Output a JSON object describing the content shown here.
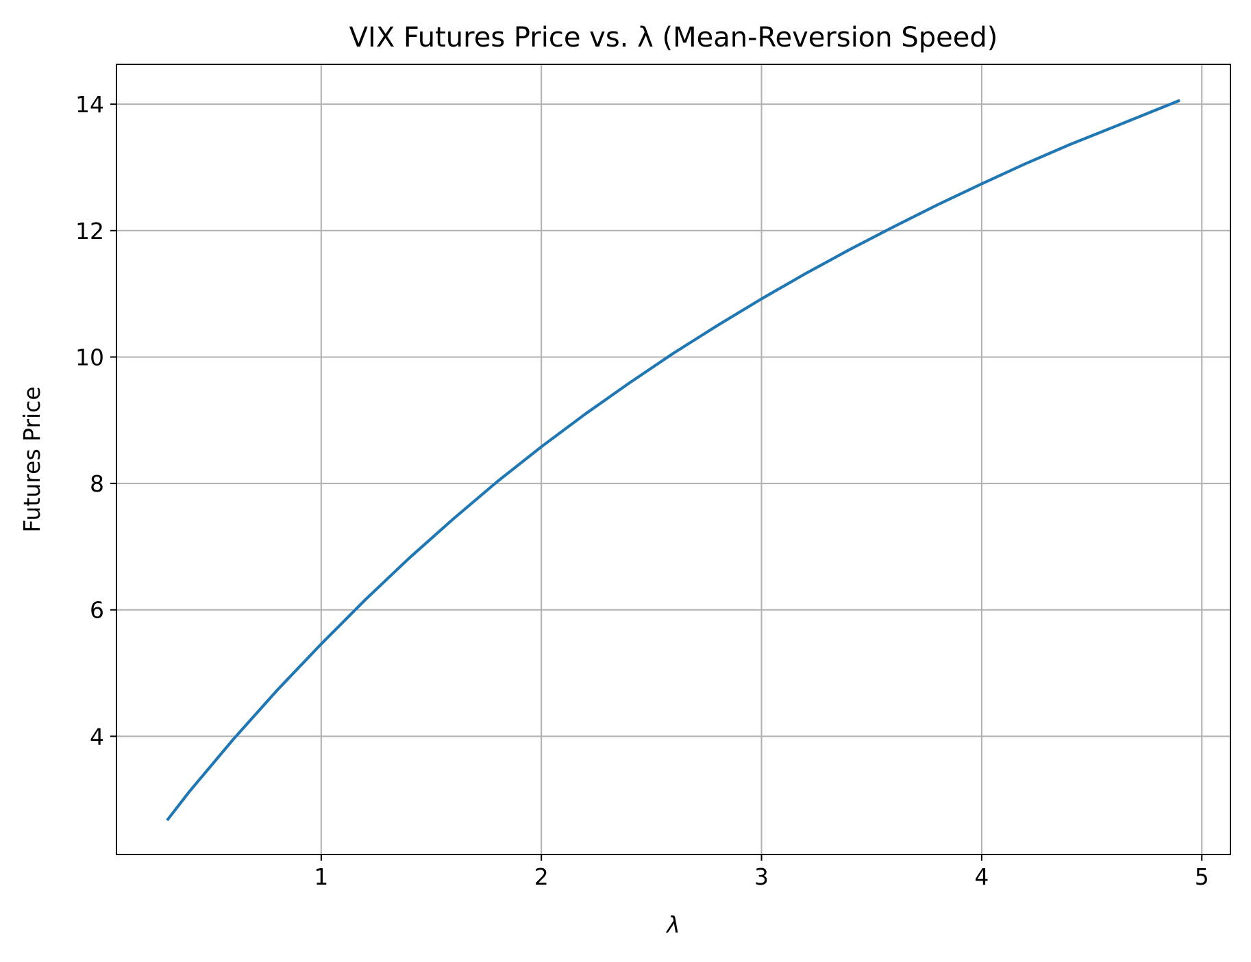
{
  "chart_data": {
    "type": "line",
    "title": "VIX Futures Price vs. λ (Mean-Reversion Speed)",
    "xlabel": "λ",
    "ylabel": "Futures Price",
    "xlim": [
      0.07,
      5.13
    ],
    "ylim": [
      2.13,
      14.63
    ],
    "xticks": [
      1,
      2,
      3,
      4,
      5
    ],
    "yticks": [
      4,
      6,
      8,
      10,
      12,
      14
    ],
    "xtick_labels": [
      "1",
      "2",
      "3",
      "4",
      "5"
    ],
    "ytick_labels": [
      "4",
      "6",
      "8",
      "10",
      "12",
      "14"
    ],
    "grid": true,
    "legend": "none",
    "series": [
      {
        "color": "#1f77b4",
        "x": [
          0.3,
          0.4,
          0.6,
          0.8,
          1.0,
          1.2,
          1.4,
          1.6,
          1.8,
          2.0,
          2.2,
          2.4,
          2.6,
          2.8,
          3.0,
          3.2,
          3.4,
          3.6,
          3.8,
          4.0,
          4.2,
          4.4,
          4.6,
          4.8,
          4.9
        ],
        "y": [
          2.67,
          3.12,
          3.95,
          4.73,
          5.46,
          6.16,
          6.82,
          7.44,
          8.03,
          8.58,
          9.1,
          9.59,
          10.06,
          10.5,
          10.92,
          11.32,
          11.7,
          12.06,
          12.41,
          12.74,
          13.06,
          13.36,
          13.64,
          13.92,
          14.06
        ]
      }
    ]
  }
}
